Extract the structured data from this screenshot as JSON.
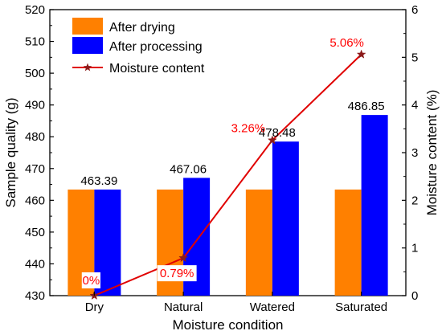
{
  "chart_data": {
    "type": "bar",
    "categories": [
      "Dry",
      "Natural",
      "Watered",
      "Saturated"
    ],
    "series": [
      {
        "name": "After drying",
        "values": [
          463.39,
          463.39,
          463.39,
          463.39
        ],
        "color": "#ff8000",
        "axis": "left"
      },
      {
        "name": "After processing",
        "values": [
          463.39,
          467.06,
          478.48,
          486.85
        ],
        "color": "#0000ff",
        "axis": "left"
      }
    ],
    "line_series": {
      "name": "Moisture content",
      "values": [
        0,
        0.79,
        3.26,
        5.06
      ],
      "color": "#e00000",
      "marker": "star",
      "axis": "right"
    },
    "bar_labels": [
      "463.39",
      "467.06",
      "478.48",
      "486.85"
    ],
    "line_labels": [
      "0%",
      "0.79%",
      "3.26%",
      "5.06%"
    ],
    "xlabel": "Moisture condition",
    "ylabel": "Sample quality (g)",
    "y2label": "Moisture content (%)",
    "ylim": [
      430,
      520
    ],
    "y2lim": [
      0,
      6
    ],
    "yticks": [
      "430",
      "440",
      "450",
      "460",
      "470",
      "480",
      "490",
      "500",
      "510",
      "520"
    ],
    "y2ticks": [
      "0",
      "1",
      "2",
      "3",
      "4",
      "5",
      "6"
    ],
    "legend_position": "top-left",
    "grid": false
  }
}
